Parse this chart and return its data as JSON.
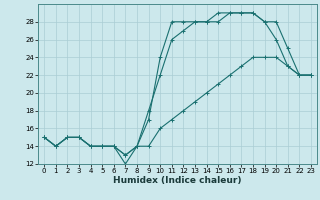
{
  "title": "",
  "xlabel": "Humidex (Indice chaleur)",
  "xlim": [
    -0.5,
    23.5
  ],
  "ylim": [
    12,
    30
  ],
  "yticks": [
    12,
    14,
    16,
    18,
    20,
    22,
    24,
    26,
    28
  ],
  "xticks": [
    0,
    1,
    2,
    3,
    4,
    5,
    6,
    7,
    8,
    9,
    10,
    11,
    12,
    13,
    14,
    15,
    16,
    17,
    18,
    19,
    20,
    21,
    22,
    23
  ],
  "bg_color": "#cce8ec",
  "line_color": "#1a7070",
  "grid_color": "#aacdd5",
  "line1_x": [
    0,
    1,
    2,
    3,
    4,
    5,
    6,
    7,
    8,
    9,
    10,
    11,
    12,
    13,
    14,
    15,
    16,
    17,
    18,
    19,
    20,
    21,
    22,
    23
  ],
  "line1_y": [
    15,
    14,
    15,
    15,
    14,
    14,
    14,
    12,
    14,
    17,
    24,
    28,
    28,
    28,
    28,
    29,
    29,
    29,
    29,
    28,
    26,
    23,
    22,
    22
  ],
  "line2_x": [
    0,
    1,
    2,
    3,
    4,
    5,
    6,
    7,
    8,
    9,
    10,
    11,
    12,
    13,
    14,
    15,
    16,
    17,
    18,
    19,
    20,
    21,
    22,
    23
  ],
  "line2_y": [
    15,
    14,
    15,
    15,
    14,
    14,
    14,
    13,
    14,
    18,
    22,
    26,
    27,
    28,
    28,
    28,
    29,
    29,
    29,
    28,
    28,
    25,
    22,
    22
  ],
  "line3_x": [
    0,
    1,
    2,
    3,
    4,
    5,
    6,
    7,
    8,
    9,
    10,
    11,
    12,
    13,
    14,
    15,
    16,
    17,
    18,
    19,
    20,
    21,
    22,
    23
  ],
  "line3_y": [
    15,
    14,
    15,
    15,
    14,
    14,
    14,
    13,
    14,
    14,
    16,
    17,
    18,
    19,
    20,
    21,
    22,
    23,
    24,
    24,
    24,
    23,
    22,
    22
  ]
}
